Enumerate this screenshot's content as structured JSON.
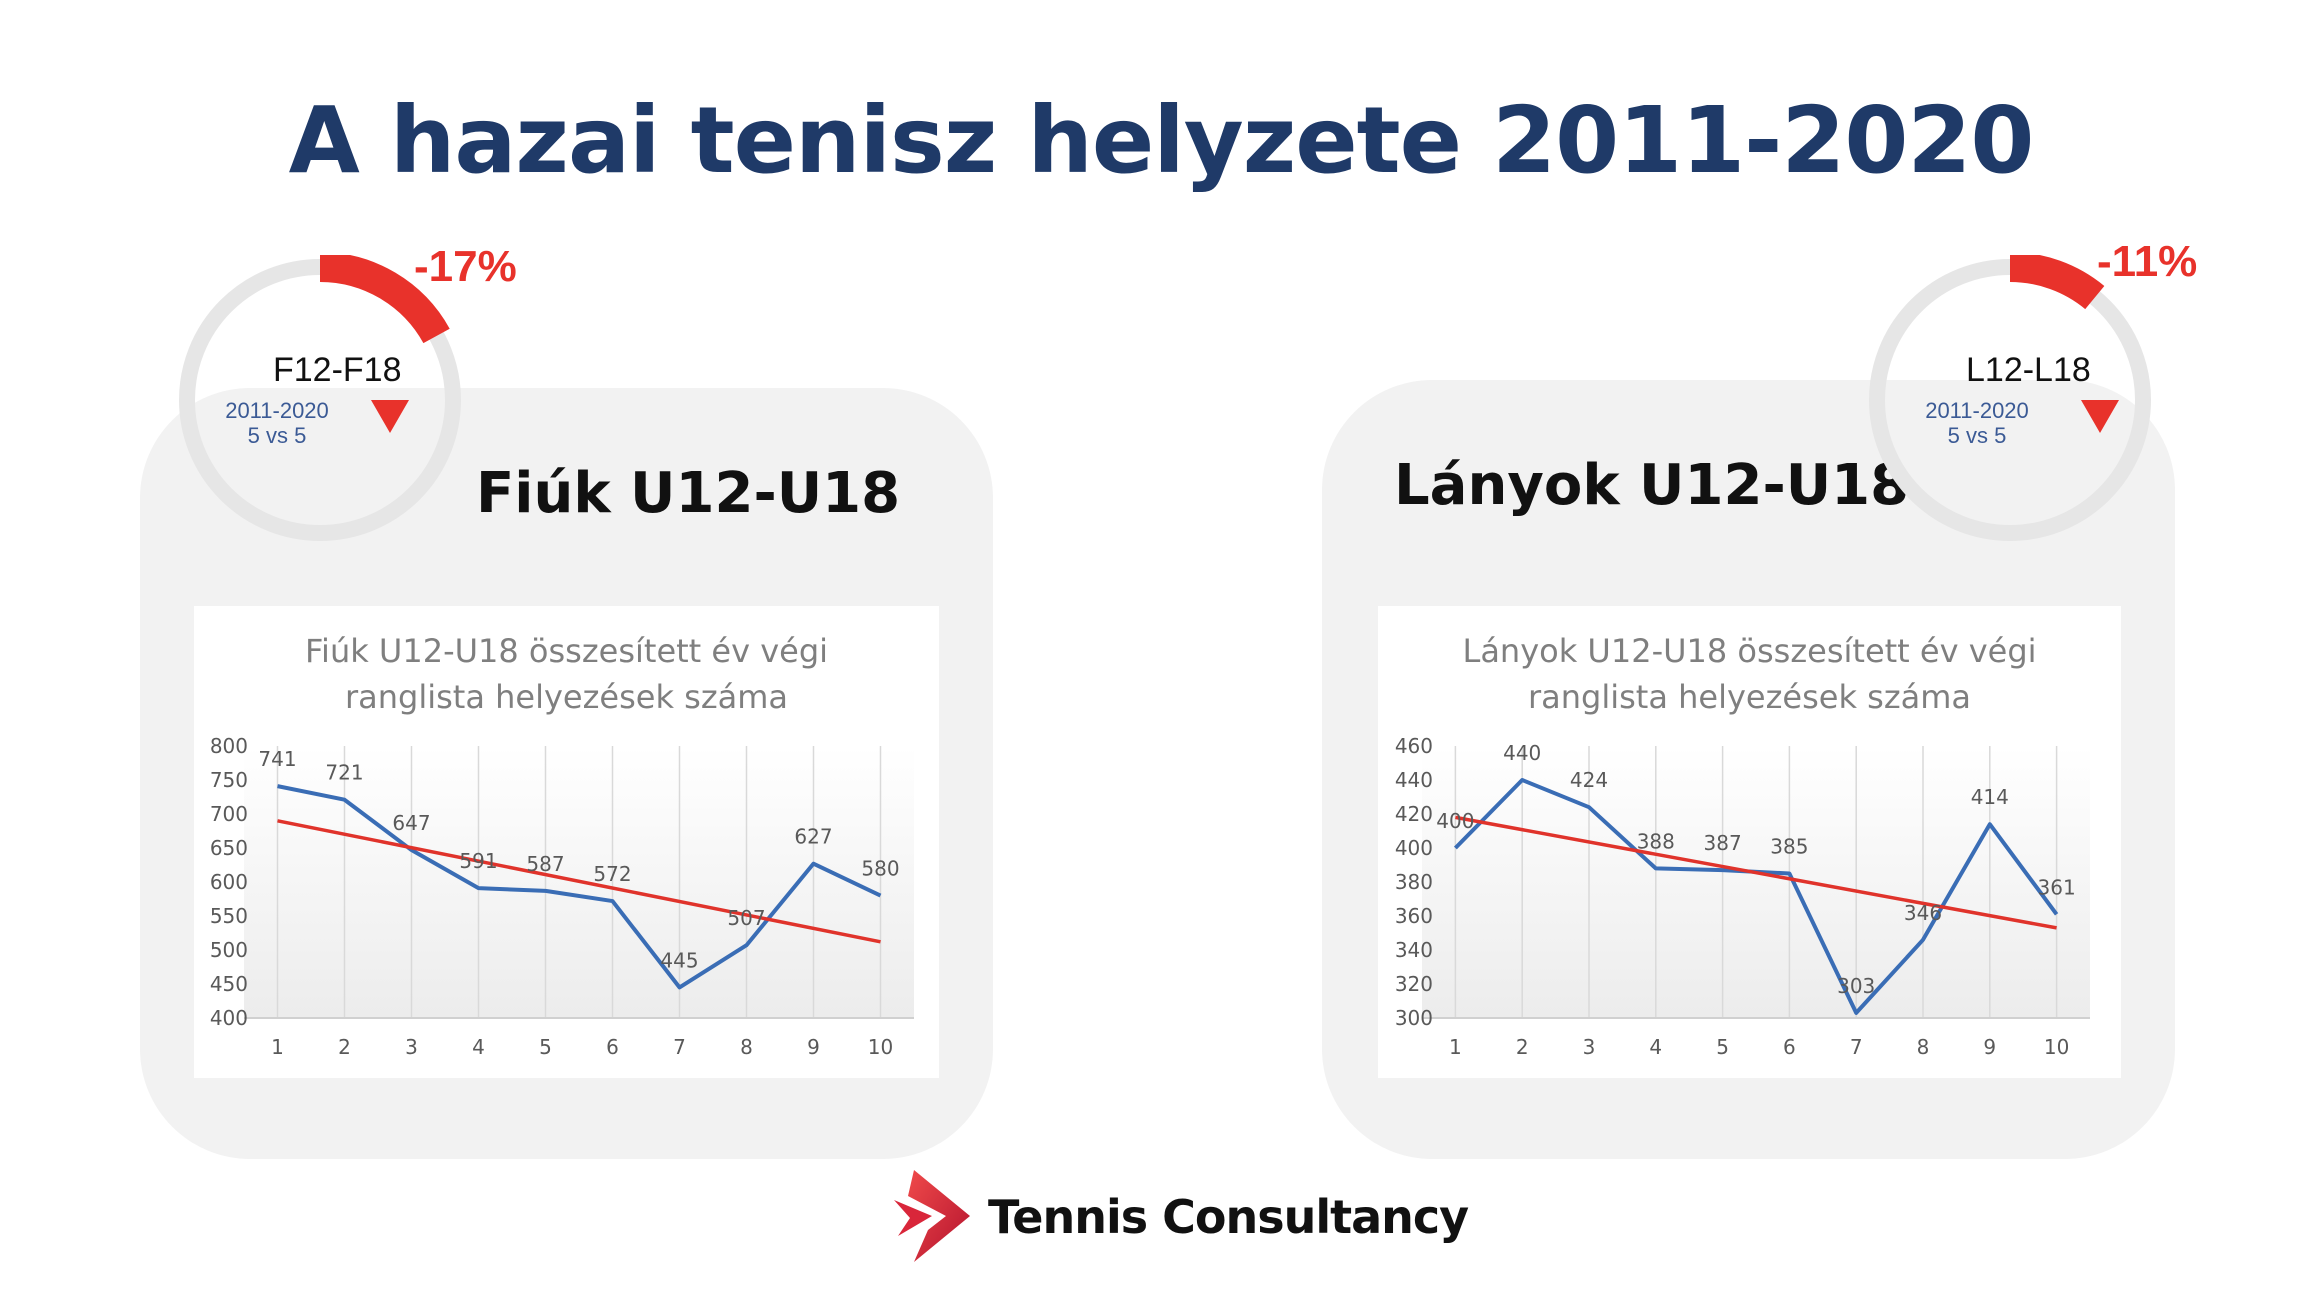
{
  "title": "A hazai tenisz helyzete 2011-2020",
  "colors": {
    "title": "#1f3a68",
    "accent_red": "#e8322b",
    "series_line": "#3a6db5",
    "trend_line": "#e0332b",
    "panel_bg": "#f2f2f2"
  },
  "boys": {
    "panel_title": "Fiúk U12-U18",
    "badge": {
      "label": "F12-F18",
      "sub_line1": "2011-2020",
      "sub_line2": "5 vs 5",
      "change": "-17%",
      "change_value": -17,
      "indicator_icon": "down-triangle-icon"
    }
  },
  "girls": {
    "panel_title": "Lányok U12-U18",
    "badge": {
      "label": "L12-L18",
      "sub_line1": "2011-2020",
      "sub_line2": "5 vs 5",
      "change": "-11%",
      "change_value": -11,
      "indicator_icon": "down-triangle-icon"
    }
  },
  "chart_data": [
    {
      "type": "line",
      "title": "Fiúk U12-U18 összesített év végi\nranglista helyezések száma",
      "xlabel": "",
      "ylabel": "",
      "categories": [
        "1",
        "2",
        "3",
        "4",
        "5",
        "6",
        "7",
        "8",
        "9",
        "10"
      ],
      "values": [
        741,
        721,
        647,
        591,
        587,
        572,
        445,
        507,
        627,
        580
      ],
      "trendline": {
        "type": "linear",
        "start": 690,
        "end": 512
      },
      "ylim": [
        400,
        800
      ],
      "yticks": [
        "400",
        "450",
        "500",
        "550",
        "600",
        "650",
        "700",
        "750",
        "800"
      ],
      "grid": "vertical",
      "legend": "none",
      "data_labels": true
    },
    {
      "type": "line",
      "title": "Lányok U12-U18 összesített év végi\nranglista helyezések száma",
      "xlabel": "",
      "ylabel": "",
      "categories": [
        "1",
        "2",
        "3",
        "4",
        "5",
        "6",
        "7",
        "8",
        "9",
        "10"
      ],
      "values": [
        400,
        440,
        424,
        388,
        387,
        385,
        303,
        346,
        414,
        361
      ],
      "trendline": {
        "type": "linear",
        "start": 418,
        "end": 353
      },
      "ylim": [
        300,
        460
      ],
      "yticks": [
        "300",
        "320",
        "340",
        "360",
        "380",
        "400",
        "420",
        "440",
        "460"
      ],
      "grid": "vertical",
      "legend": "none",
      "data_labels": true
    }
  ],
  "logo": {
    "text": "Tennis Consultancy",
    "icon": "tennis-consultancy-logo-icon"
  }
}
